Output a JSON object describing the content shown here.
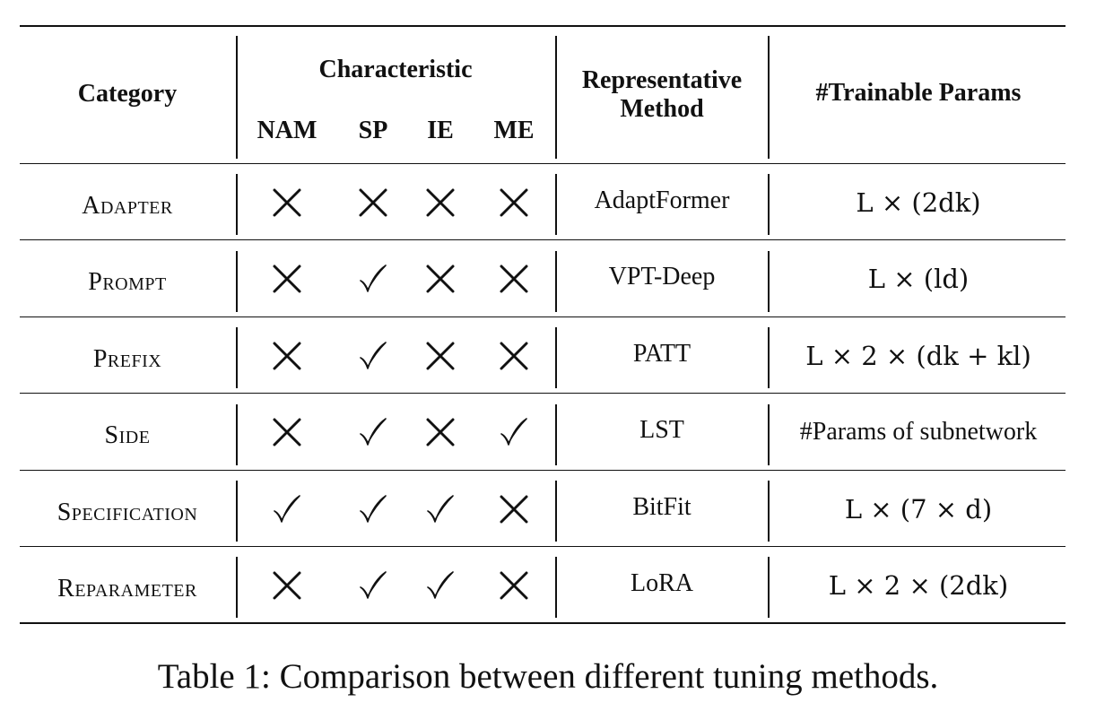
{
  "header": {
    "category": "Category",
    "characteristic": "Characteristic",
    "sub": [
      "NAM",
      "SP",
      "IE",
      "ME"
    ],
    "method_line1": "Representative",
    "method_line2": "Method",
    "params": "#Trainable Params"
  },
  "rows": [
    {
      "category": "Adapter",
      "marks": [
        "cross",
        "cross",
        "cross",
        "cross"
      ],
      "method": "AdaptFormer",
      "params": "L × (2dk)"
    },
    {
      "category": "Prompt",
      "marks": [
        "cross",
        "check",
        "cross",
        "cross"
      ],
      "method": "VPT-Deep",
      "params": "L × (ld)"
    },
    {
      "category": "Prefix",
      "marks": [
        "cross",
        "check",
        "cross",
        "cross"
      ],
      "method": "PATT",
      "params": "L × 2 × (dk + kl)"
    },
    {
      "category": "Side",
      "marks": [
        "cross",
        "check",
        "cross",
        "check"
      ],
      "method": "LST",
      "params": "#Params of subnetwork"
    },
    {
      "category": "Specification",
      "marks": [
        "check",
        "check",
        "check",
        "cross"
      ],
      "method": "BitFit",
      "params": "L × (7 × d)"
    },
    {
      "category": "Reparameter",
      "marks": [
        "cross",
        "check",
        "check",
        "cross"
      ],
      "method": "LoRA",
      "params": "L × 2 × (2dk)"
    }
  ],
  "caption": "Table 1: Comparison between different tuning methods."
}
